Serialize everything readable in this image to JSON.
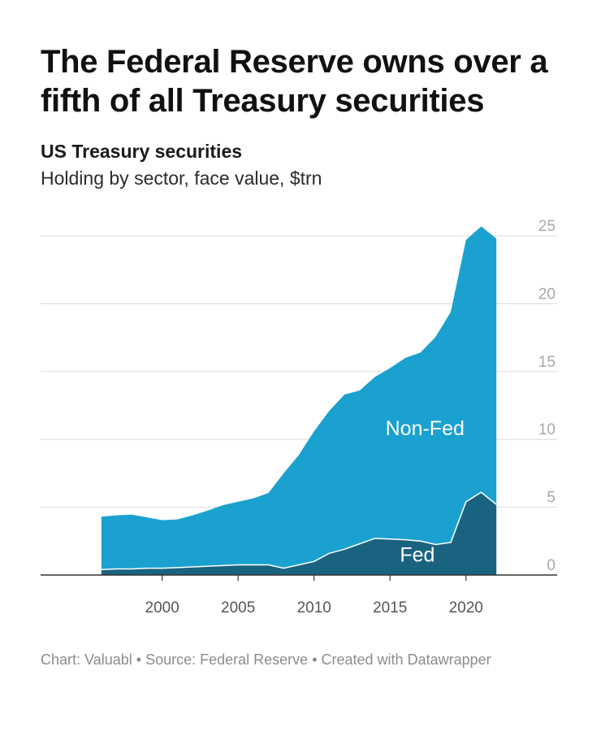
{
  "header": {
    "title": "The Federal Reserve owns over a fifth of all Treasury securities",
    "subtitle": "US Treasury securities",
    "description": "Holding by sector, face value, $trn"
  },
  "footer": {
    "chart_by": "Chart: Valuabl",
    "source": "Source: Federal Reserve",
    "created_with": "Created with Datawrapper",
    "separator": "•"
  },
  "chart_data": {
    "type": "area",
    "stacked": true,
    "x": [
      1996,
      1997,
      1998,
      1999,
      2000,
      2001,
      2002,
      2003,
      2004,
      2005,
      2006,
      2007,
      2008,
      2009,
      2010,
      2011,
      2012,
      2013,
      2014,
      2015,
      2016,
      2017,
      2018,
      2019,
      2020,
      2021,
      2022
    ],
    "series": [
      {
        "name": "Fed",
        "color": "#1a6380",
        "values": [
          0.4,
          0.45,
          0.45,
          0.5,
          0.5,
          0.55,
          0.6,
          0.65,
          0.7,
          0.75,
          0.75,
          0.75,
          0.5,
          0.75,
          1.0,
          1.6,
          1.9,
          2.3,
          2.7,
          2.65,
          2.6,
          2.5,
          2.25,
          2.4,
          5.4,
          6.1,
          5.2
        ]
      },
      {
        "name": "Non-Fed",
        "color": "#1aa1cf",
        "values": [
          3.9,
          3.95,
          4.0,
          3.75,
          3.55,
          3.55,
          3.8,
          4.1,
          4.45,
          4.65,
          4.9,
          5.3,
          7.0,
          8.1,
          9.6,
          10.5,
          11.4,
          11.3,
          11.9,
          12.6,
          13.4,
          13.9,
          15.3,
          17.0,
          19.3,
          19.6,
          19.6
        ]
      }
    ],
    "x_ticks": [
      2000,
      2005,
      2010,
      2015,
      2020
    ],
    "y_ticks": [
      0,
      5,
      10,
      15,
      20,
      25
    ],
    "xlim": [
      1992,
      2026
    ],
    "ylim": [
      0,
      25
    ],
    "grid": true,
    "y_axis_side": "right",
    "labels": [
      {
        "text": "Non-Fed",
        "x": 2017.3,
        "y": 10.3
      },
      {
        "text": "Fed",
        "x": 2016.8,
        "y": 1.0
      }
    ]
  }
}
